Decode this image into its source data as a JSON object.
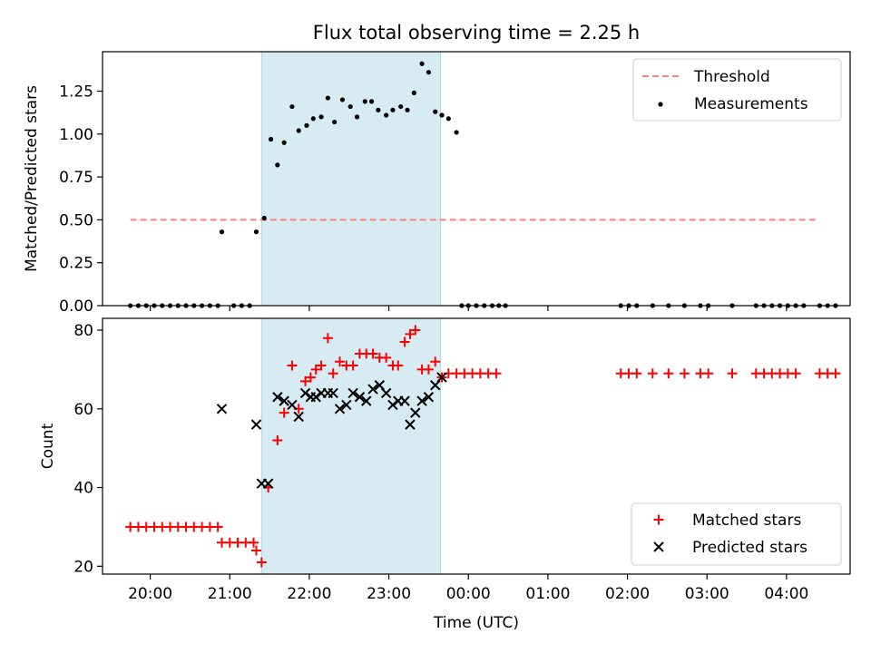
{
  "chart_data": [
    {
      "type": "scatter",
      "title": "Flux total observing time = 2.25 h",
      "xlabel": "",
      "ylabel": "Matched/Predicted stars",
      "xlim": [
        "19:24",
        "04:48"
      ],
      "ylim": [
        0,
        1.48
      ],
      "yticks": [
        "0.00",
        "0.25",
        "0.50",
        "0.75",
        "1.00",
        "1.25"
      ],
      "shaded_interval": [
        "21:24",
        "23:39"
      ],
      "legend": {
        "position": "upper right",
        "entries": [
          "Threshold",
          "Measurements"
        ]
      },
      "threshold": {
        "name": "Threshold",
        "value": 0.5,
        "x_range": [
          "19:45",
          "04:22"
        ],
        "color": "#ff7f7f"
      },
      "series": [
        {
          "name": "Measurements",
          "color": "#000000",
          "points": [
            [
              "19:45",
              0
            ],
            [
              "19:51",
              0
            ],
            [
              "19:57",
              0
            ],
            [
              "20:03",
              0
            ],
            [
              "20:09",
              0
            ],
            [
              "20:15",
              0
            ],
            [
              "20:21",
              0
            ],
            [
              "20:27",
              0
            ],
            [
              "20:33",
              0
            ],
            [
              "20:39",
              0
            ],
            [
              "20:45",
              0
            ],
            [
              "20:51",
              0
            ],
            [
              "20:54",
              0.43
            ],
            [
              "21:03",
              0
            ],
            [
              "21:09",
              0
            ],
            [
              "21:15",
              0
            ],
            [
              "21:20",
              0.43
            ],
            [
              "21:26",
              0.51
            ],
            [
              "21:31",
              0.97
            ],
            [
              "21:36",
              0.82
            ],
            [
              "21:41",
              0.95
            ],
            [
              "21:47",
              1.16
            ],
            [
              "21:52",
              1.02
            ],
            [
              "21:58",
              1.05
            ],
            [
              "22:03",
              1.09
            ],
            [
              "22:09",
              1.1
            ],
            [
              "22:14",
              1.21
            ],
            [
              "22:19",
              1.07
            ],
            [
              "22:25",
              1.2
            ],
            [
              "22:31",
              1.16
            ],
            [
              "22:36",
              1.1
            ],
            [
              "22:42",
              1.19
            ],
            [
              "22:47",
              1.19
            ],
            [
              "22:52",
              1.14
            ],
            [
              "22:58",
              1.11
            ],
            [
              "23:03",
              1.14
            ],
            [
              "23:09",
              1.16
            ],
            [
              "23:14",
              1.14
            ],
            [
              "23:19",
              1.24
            ],
            [
              "23:25",
              1.41
            ],
            [
              "23:30",
              1.36
            ],
            [
              "23:35",
              1.13
            ],
            [
              "23:40",
              1.11
            ],
            [
              "23:45",
              1.09
            ],
            [
              "23:51",
              1.01
            ],
            [
              "23:55",
              0
            ],
            [
              "24:00",
              0
            ],
            [
              "24:06",
              0
            ],
            [
              "24:12",
              0
            ],
            [
              "24:18",
              0
            ],
            [
              "24:23",
              0
            ],
            [
              "24:28",
              0
            ],
            [
              "25:55",
              0
            ],
            [
              "26:01",
              0
            ],
            [
              "26:07",
              0
            ],
            [
              "26:19",
              0
            ],
            [
              "26:31",
              0
            ],
            [
              "26:43",
              0
            ],
            [
              "26:55",
              0
            ],
            [
              "27:01",
              0
            ],
            [
              "27:19",
              0
            ],
            [
              "27:37",
              0
            ],
            [
              "27:43",
              0
            ],
            [
              "27:49",
              0
            ],
            [
              "27:55",
              0
            ],
            [
              "28:01",
              0
            ],
            [
              "28:07",
              0
            ],
            [
              "28:13",
              0
            ],
            [
              "28:25",
              0
            ],
            [
              "28:31",
              0
            ],
            [
              "28:37",
              0
            ]
          ]
        }
      ]
    },
    {
      "type": "scatter",
      "xlabel": "Time (UTC)",
      "ylabel": "Count",
      "xlim": [
        "19:24",
        "04:48"
      ],
      "ylim": [
        18,
        83
      ],
      "xticks": [
        "20:00",
        "21:00",
        "22:00",
        "23:00",
        "00:00",
        "01:00",
        "02:00",
        "03:00",
        "04:00"
      ],
      "yticks": [
        "20",
        "40",
        "60",
        "80"
      ],
      "shaded_interval": [
        "21:24",
        "23:39"
      ],
      "legend": {
        "position": "lower right",
        "entries": [
          "Matched stars",
          "Predicted stars"
        ]
      },
      "series": [
        {
          "name": "Matched stars",
          "color": "#ff0000",
          "marker": "+",
          "points": [
            [
              "19:45",
              30
            ],
            [
              "19:51",
              30
            ],
            [
              "19:57",
              30
            ],
            [
              "20:03",
              30
            ],
            [
              "20:09",
              30
            ],
            [
              "20:15",
              30
            ],
            [
              "20:21",
              30
            ],
            [
              "20:27",
              30
            ],
            [
              "20:33",
              30
            ],
            [
              "20:39",
              30
            ],
            [
              "20:45",
              30
            ],
            [
              "20:51",
              30
            ],
            [
              "20:54",
              26
            ],
            [
              "21:00",
              26
            ],
            [
              "21:06",
              26
            ],
            [
              "21:12",
              26
            ],
            [
              "21:18",
              26
            ],
            [
              "21:20",
              24
            ],
            [
              "21:24",
              21
            ],
            [
              "21:29",
              40
            ],
            [
              "21:36",
              52
            ],
            [
              "21:41",
              59
            ],
            [
              "21:47",
              71
            ],
            [
              "21:52",
              60
            ],
            [
              "21:57",
              67
            ],
            [
              "22:01",
              68
            ],
            [
              "22:05",
              70
            ],
            [
              "22:09",
              71
            ],
            [
              "22:14",
              78
            ],
            [
              "22:18",
              69
            ],
            [
              "22:23",
              72
            ],
            [
              "22:28",
              71
            ],
            [
              "22:33",
              71
            ],
            [
              "22:38",
              74
            ],
            [
              "22:43",
              74
            ],
            [
              "22:48",
              74
            ],
            [
              "22:53",
              73
            ],
            [
              "22:58",
              73
            ],
            [
              "23:03",
              71
            ],
            [
              "23:07",
              71
            ],
            [
              "23:12",
              77
            ],
            [
              "23:16",
              79
            ],
            [
              "23:20",
              80
            ],
            [
              "23:25",
              70
            ],
            [
              "23:30",
              70
            ],
            [
              "23:35",
              72
            ],
            [
              "23:40",
              68
            ],
            [
              "23:45",
              69
            ],
            [
              "23:51",
              69
            ],
            [
              "23:57",
              69
            ],
            [
              "24:03",
              69
            ],
            [
              "24:09",
              69
            ],
            [
              "24:15",
              69
            ],
            [
              "24:21",
              69
            ],
            [
              "25:55",
              69
            ],
            [
              "26:01",
              69
            ],
            [
              "26:07",
              69
            ],
            [
              "26:19",
              69
            ],
            [
              "26:31",
              69
            ],
            [
              "26:43",
              69
            ],
            [
              "26:55",
              69
            ],
            [
              "27:01",
              69
            ],
            [
              "27:19",
              69
            ],
            [
              "27:37",
              69
            ],
            [
              "27:43",
              69
            ],
            [
              "27:49",
              69
            ],
            [
              "27:55",
              69
            ],
            [
              "28:01",
              69
            ],
            [
              "28:07",
              69
            ],
            [
              "28:25",
              69
            ],
            [
              "28:31",
              69
            ],
            [
              "28:37",
              69
            ]
          ]
        },
        {
          "name": "Predicted stars",
          "color": "#000000",
          "marker": "x",
          "points": [
            [
              "20:54",
              60
            ],
            [
              "21:20",
              56
            ],
            [
              "21:24",
              41
            ],
            [
              "21:29",
              41
            ],
            [
              "21:36",
              63
            ],
            [
              "21:41",
              62
            ],
            [
              "21:47",
              61
            ],
            [
              "21:52",
              58
            ],
            [
              "21:57",
              64
            ],
            [
              "22:01",
              63
            ],
            [
              "22:05",
              63
            ],
            [
              "22:09",
              64
            ],
            [
              "22:14",
              64
            ],
            [
              "22:18",
              64
            ],
            [
              "22:23",
              60
            ],
            [
              "22:28",
              61
            ],
            [
              "22:33",
              64
            ],
            [
              "22:38",
              63
            ],
            [
              "22:43",
              62
            ],
            [
              "22:48",
              65
            ],
            [
              "22:53",
              66
            ],
            [
              "22:58",
              64
            ],
            [
              "23:03",
              61
            ],
            [
              "23:07",
              62
            ],
            [
              "23:12",
              62
            ],
            [
              "23:16",
              56
            ],
            [
              "23:20",
              59
            ],
            [
              "23:25",
              62
            ],
            [
              "23:30",
              63
            ],
            [
              "23:35",
              66
            ],
            [
              "23:40",
              68
            ]
          ]
        }
      ]
    }
  ]
}
